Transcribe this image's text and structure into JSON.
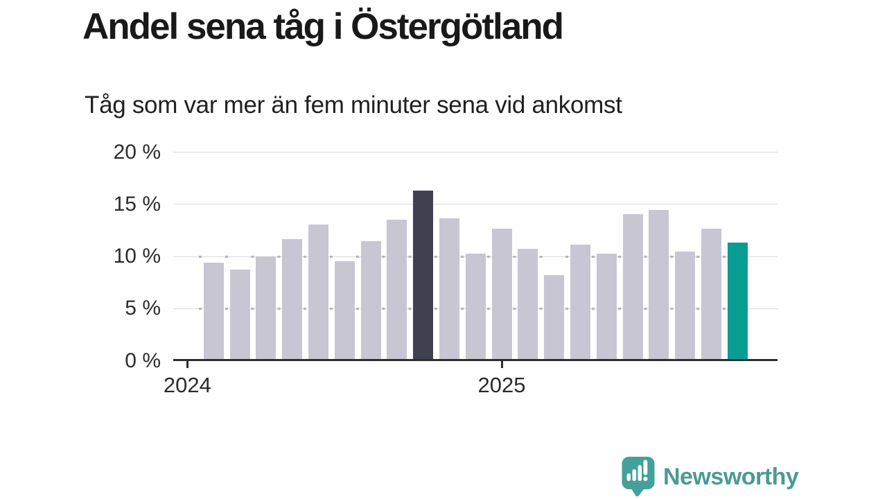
{
  "header": {
    "title": "Andel sena tåg i Östergötland",
    "subtitle": "Tåg som var mer än fem minuter sena vid ankomst"
  },
  "chart_data": {
    "type": "bar",
    "title": "Andel sena tåg i Östergötland",
    "subtitle": "Tåg som var mer än fem minuter sena vid ankomst",
    "unit": "%",
    "ylim": [
      0,
      20
    ],
    "grid": "horizontal",
    "legend_position": "none",
    "y_ticks": [
      {
        "value": 20,
        "label": "20 %"
      },
      {
        "value": 15,
        "label": "15 %"
      },
      {
        "value": 10,
        "label": "10 %"
      },
      {
        "value": 5,
        "label": "5 %"
      },
      {
        "value": 0,
        "label": "0 %"
      }
    ],
    "x_ticks": [
      {
        "label": "2024",
        "slot": 0
      },
      {
        "label": "2025",
        "slot": 12
      }
    ],
    "missing_months": [
      "2024-01"
    ],
    "categories": [
      "2024-02",
      "2024-03",
      "2024-04",
      "2024-05",
      "2024-06",
      "2024-07",
      "2024-08",
      "2024-09",
      "2024-10",
      "2024-11",
      "2024-12",
      "2025-01",
      "2025-02",
      "2025-03",
      "2025-04",
      "2025-05",
      "2025-06",
      "2025-07",
      "2025-08",
      "2025-09",
      "2025-10"
    ],
    "values": [
      9.4,
      8.7,
      10.0,
      11.6,
      13.0,
      9.5,
      11.4,
      13.5,
      16.3,
      13.6,
      10.2,
      12.6,
      10.7,
      8.2,
      11.1,
      10.2,
      14.0,
      14.4,
      10.4,
      12.6,
      11.3
    ],
    "highlights": {
      "dark_month": "2024-10",
      "accent_month": "2025-10"
    },
    "colors": {
      "bar_default": "#c8c6d2",
      "bar_dark": "#414050",
      "bar_accent": "#089d93",
      "gridline": "#d9d8dd",
      "grid_dot": "#b5b3bf",
      "axis": "#2d2d2d",
      "tick_label": "#2b2b2b"
    }
  },
  "logo": {
    "label": "Newsworthy",
    "icon": "newsworthy-speech-bubble-bar-chart-icon",
    "color": "#4a9a94",
    "icon_color": "#44a09a"
  }
}
